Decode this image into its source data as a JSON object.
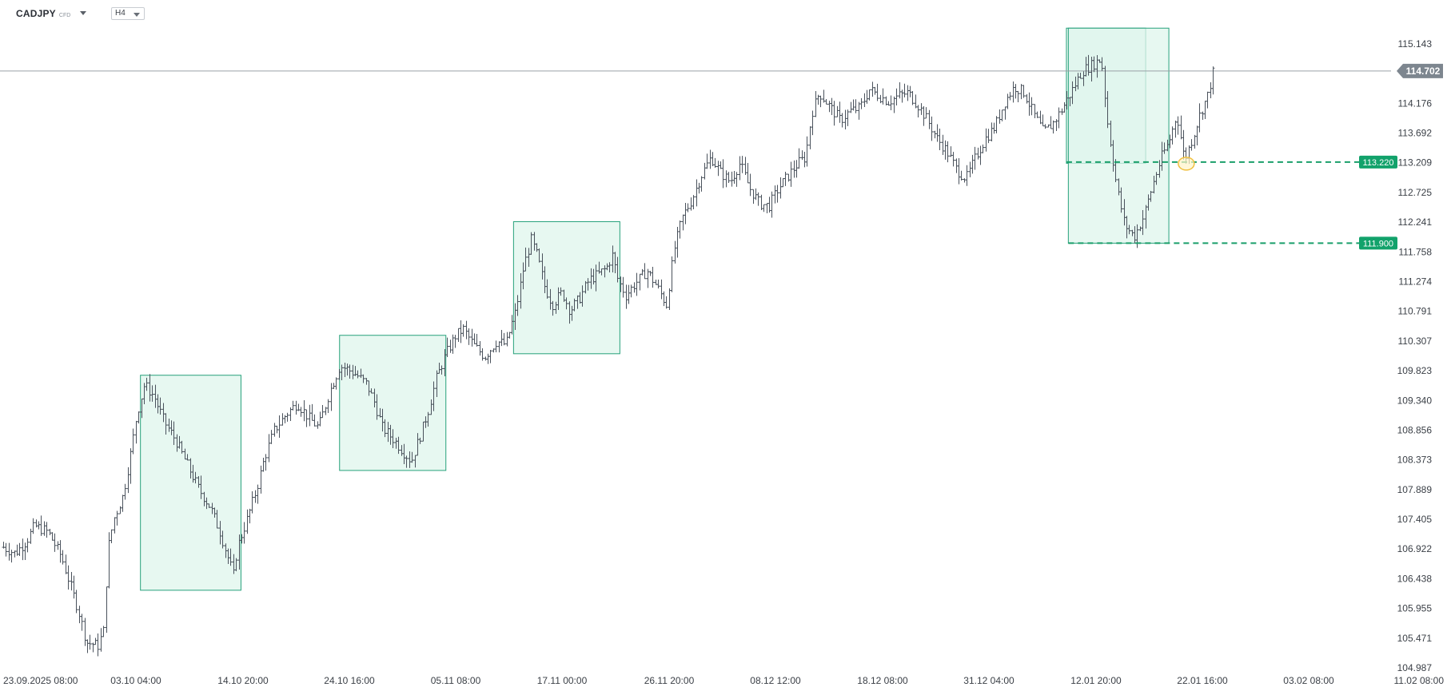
{
  "header": {
    "symbol": "CADJPY",
    "symbol_type": "CFD",
    "timeframe": "H4"
  },
  "colors": {
    "candle": "#4a525c",
    "zone_fill": "#dff5ec",
    "zone_stroke": "#26a17b",
    "level_line": "#1a9f6a",
    "badge_bg": "#12a26b",
    "price_line": "#9aa0a6",
    "current_badge": "#7d868f",
    "marker": "#f0c040"
  },
  "price_axis": {
    "labels": [
      "115.143",
      "114.176",
      "113.692",
      "113.209",
      "112.725",
      "112.241",
      "111.758",
      "111.274",
      "110.791",
      "110.307",
      "109.823",
      "109.340",
      "108.856",
      "108.373",
      "107.889",
      "107.405",
      "106.922",
      "106.438",
      "105.955",
      "105.471",
      "104.987"
    ]
  },
  "time_axis": {
    "labels": [
      "23.09.2025  08:00",
      "03.10  04:00",
      "14.10  20:00",
      "24.10  16:00",
      "05.11  08:00",
      "17.11  00:00",
      "26.11  20:00",
      "08.12  12:00",
      "18.12  08:00",
      "31.12  04:00",
      "12.01  20:00",
      "22.01  16:00",
      "03.02  08:00",
      "11.02  08:00"
    ]
  },
  "current_price": "114.702",
  "levels": [
    {
      "price": 113.22,
      "label": "113.220"
    },
    {
      "price": 111.9,
      "label": "111.900"
    }
  ],
  "chart_data": {
    "type": "ohlc",
    "instrument": "CADJPY",
    "timeframe": "H4",
    "ylim": [
      104.987,
      115.143
    ],
    "x_ticks": [
      "23.09.2025 08:00",
      "03.10 04:00",
      "14.10 20:00",
      "24.10 16:00",
      "05.11 08:00",
      "17.11 00:00",
      "26.11 20:00",
      "08.12 12:00",
      "18.12 08:00",
      "31.12 04:00",
      "12.01 20:00",
      "22.01 16:00",
      "03.02 08:00",
      "11.02 08:00"
    ],
    "approx_close_path": [
      [
        0,
        106.95
      ],
      [
        0.6,
        106.85
      ],
      [
        1.2,
        107.05
      ],
      [
        1.6,
        107.3
      ],
      [
        2.3,
        107.2
      ],
      [
        3.0,
        106.8
      ],
      [
        3.4,
        106.4
      ],
      [
        3.9,
        105.9
      ],
      [
        4.3,
        105.4
      ],
      [
        4.9,
        105.35
      ],
      [
        5.2,
        105.6
      ],
      [
        5.4,
        106.9
      ],
      [
        5.7,
        107.4
      ],
      [
        6.2,
        107.8
      ],
      [
        6.6,
        108.5
      ],
      [
        6.9,
        109.1
      ],
      [
        7.3,
        109.6
      ],
      [
        7.8,
        109.4
      ],
      [
        8.3,
        109.0
      ],
      [
        8.9,
        108.7
      ],
      [
        9.5,
        108.3
      ],
      [
        10.1,
        107.9
      ],
      [
        10.7,
        107.6
      ],
      [
        11.2,
        107.2
      ],
      [
        11.6,
        106.8
      ],
      [
        11.9,
        106.5
      ],
      [
        12.1,
        106.95
      ],
      [
        12.6,
        107.4
      ],
      [
        13.1,
        107.9
      ],
      [
        13.5,
        108.4
      ],
      [
        14.0,
        108.85
      ],
      [
        14.6,
        109.1
      ],
      [
        15.2,
        109.3
      ],
      [
        15.8,
        109.05
      ],
      [
        16.3,
        108.9
      ],
      [
        16.9,
        109.5
      ],
      [
        17.4,
        109.9
      ],
      [
        17.8,
        109.85
      ],
      [
        18.3,
        109.75
      ],
      [
        18.8,
        109.6
      ],
      [
        19.2,
        109.3
      ],
      [
        19.6,
        108.9
      ],
      [
        20.2,
        108.7
      ],
      [
        20.7,
        108.5
      ],
      [
        21.1,
        108.35
      ],
      [
        21.6,
        108.8
      ],
      [
        22.0,
        109.2
      ],
      [
        22.4,
        109.7
      ],
      [
        22.9,
        110.1
      ],
      [
        23.4,
        110.4
      ],
      [
        23.8,
        110.5
      ],
      [
        24.3,
        110.25
      ],
      [
        24.9,
        110.05
      ],
      [
        25.5,
        110.3
      ],
      [
        26.0,
        110.25
      ],
      [
        26.5,
        110.8
      ],
      [
        26.9,
        111.5
      ],
      [
        27.3,
        111.95
      ],
      [
        27.6,
        111.7
      ],
      [
        28.0,
        111.2
      ],
      [
        28.4,
        110.9
      ],
      [
        28.9,
        111.1
      ],
      [
        29.3,
        110.8
      ],
      [
        29.8,
        111.0
      ],
      [
        30.3,
        111.3
      ],
      [
        30.8,
        111.4
      ],
      [
        31.2,
        111.5
      ],
      [
        31.5,
        111.7
      ],
      [
        31.8,
        111.3
      ],
      [
        32.2,
        111.05
      ],
      [
        32.7,
        111.25
      ],
      [
        33.3,
        111.45
      ],
      [
        33.8,
        111.2
      ],
      [
        34.3,
        110.9
      ],
      [
        34.7,
        111.8
      ],
      [
        35.1,
        112.3
      ],
      [
        35.6,
        112.6
      ],
      [
        36.1,
        113.0
      ],
      [
        36.6,
        113.3
      ],
      [
        37.1,
        113.05
      ],
      [
        37.6,
        112.9
      ],
      [
        38.1,
        113.2
      ],
      [
        38.6,
        112.8
      ],
      [
        39.1,
        112.55
      ],
      [
        39.6,
        112.5
      ],
      [
        40.1,
        112.8
      ],
      [
        40.6,
        113.0
      ],
      [
        41.1,
        113.2
      ],
      [
        41.5,
        113.3
      ],
      [
        41.8,
        114.0
      ],
      [
        42.2,
        114.35
      ],
      [
        42.8,
        114.1
      ],
      [
        43.3,
        113.9
      ],
      [
        43.8,
        114.05
      ],
      [
        44.3,
        114.1
      ],
      [
        44.8,
        114.4
      ],
      [
        45.3,
        114.3
      ],
      [
        45.8,
        114.2
      ],
      [
        46.3,
        114.3
      ],
      [
        46.8,
        114.35
      ],
      [
        47.3,
        114.15
      ],
      [
        47.8,
        113.9
      ],
      [
        48.3,
        113.6
      ],
      [
        48.8,
        113.4
      ],
      [
        49.3,
        113.1
      ],
      [
        49.8,
        112.95
      ],
      [
        50.3,
        113.3
      ],
      [
        50.8,
        113.6
      ],
      [
        51.3,
        113.8
      ],
      [
        51.8,
        114.2
      ],
      [
        52.3,
        114.45
      ],
      [
        52.8,
        114.35
      ],
      [
        53.3,
        114.0
      ],
      [
        53.8,
        113.7
      ],
      [
        54.3,
        113.85
      ],
      [
        54.8,
        114.1
      ],
      [
        55.3,
        114.4
      ],
      [
        55.8,
        114.7
      ],
      [
        56.3,
        114.8
      ],
      [
        56.8,
        114.9
      ],
      [
        57.1,
        113.9
      ],
      [
        57.6,
        112.8
      ],
      [
        58.0,
        112.2
      ],
      [
        58.5,
        112.0
      ],
      [
        59.0,
        112.35
      ],
      [
        59.5,
        112.9
      ],
      [
        59.9,
        113.3
      ],
      [
        60.3,
        113.55
      ],
      [
        60.7,
        114.0
      ],
      [
        61.1,
        113.25
      ],
      [
        61.5,
        113.6
      ],
      [
        61.9,
        114.0
      ],
      [
        62.3,
        114.3
      ],
      [
        62.6,
        114.7
      ]
    ],
    "zones": [
      {
        "from": 7.1,
        "to": 12.3,
        "top": 109.75,
        "bottom": 106.25
      },
      {
        "from": 17.4,
        "to": 22.9,
        "top": 110.4,
        "bottom": 108.2
      },
      {
        "from": 26.4,
        "to": 31.9,
        "top": 112.25,
        "bottom": 110.1
      },
      {
        "from": 55.0,
        "to": 59.1,
        "top": 115.4,
        "bottom": 113.2
      },
      {
        "from": 55.1,
        "to": 60.3,
        "top": 115.4,
        "bottom": 111.9
      }
    ],
    "levels": [
      113.22,
      111.9
    ],
    "current_price": 114.702
  }
}
